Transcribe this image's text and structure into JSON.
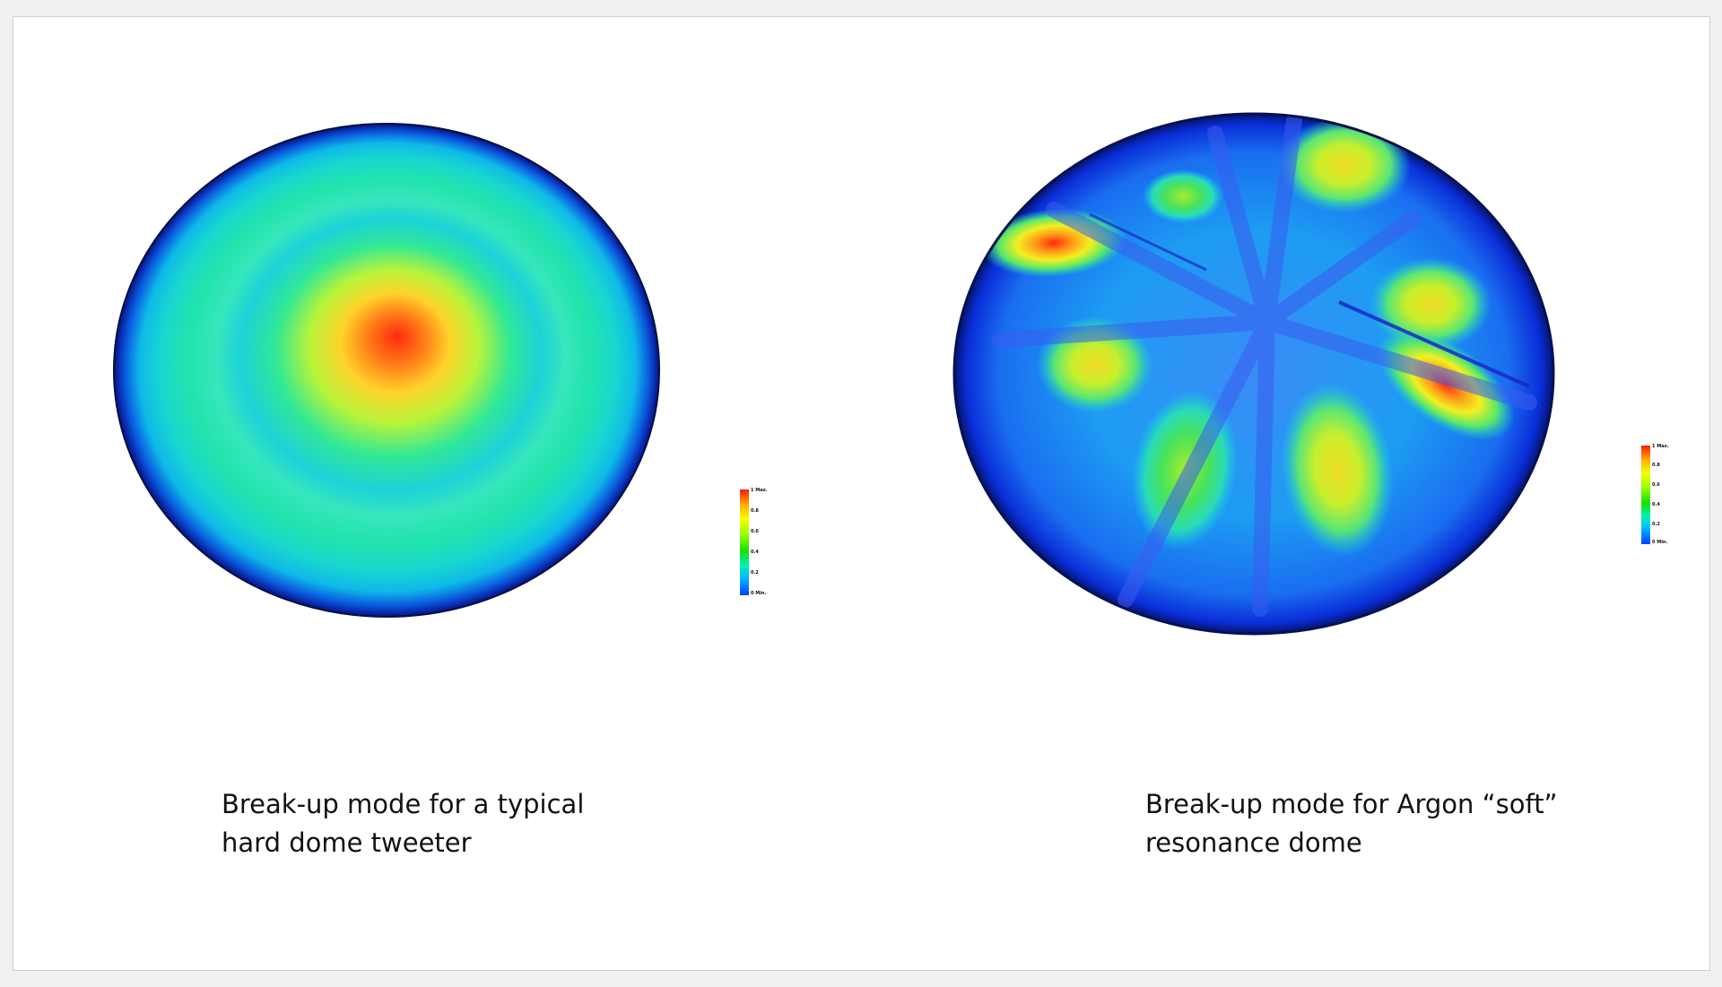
{
  "left_panel": {
    "caption_line1": "Break-up mode for a typical",
    "caption_line2": "hard dome tweeter",
    "scale_ticks": [
      "1 Max.",
      "0.8",
      "0.6",
      "0.4",
      "0.2",
      "0 Min."
    ]
  },
  "right_panel": {
    "caption_line1": "Break-up mode for Argon “soft”",
    "caption_line2": "resonance dome",
    "scale_ticks": [
      "1 Max.",
      "0.8",
      "0.6",
      "0.4",
      "0.2",
      "0 Min."
    ]
  },
  "colors": {
    "background": "#ffffff",
    "max": "#ff1a00",
    "min": "#0018d8",
    "mid": "#2ef0a8"
  }
}
